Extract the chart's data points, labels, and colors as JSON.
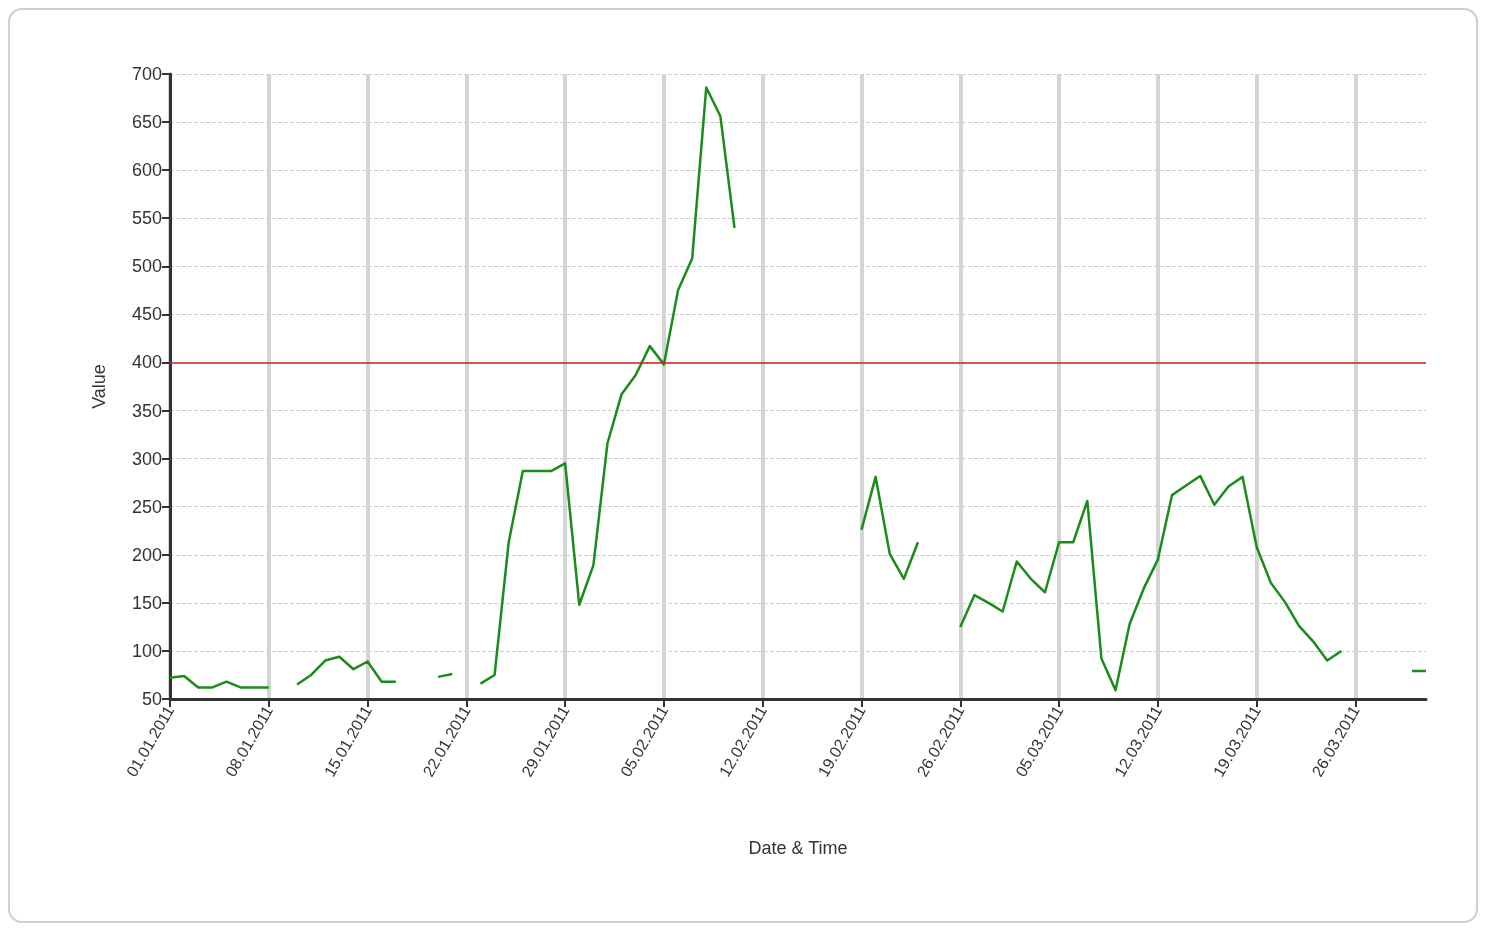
{
  "chart_data": {
    "type": "line",
    "xlabel": "Date & Time",
    "ylabel": "Value",
    "x": [
      "2011-01-01",
      "2011-01-02",
      "2011-01-03",
      "2011-01-04",
      "2011-01-05",
      "2011-01-06",
      "2011-01-07",
      "2011-01-08",
      "2011-01-09",
      "2011-01-10",
      "2011-01-11",
      "2011-01-12",
      "2011-01-13",
      "2011-01-14",
      "2011-01-15",
      "2011-01-16",
      "2011-01-17",
      "2011-01-18",
      "2011-01-19",
      "2011-01-20",
      "2011-01-21",
      "2011-01-22",
      "2011-01-23",
      "2011-01-24",
      "2011-01-25",
      "2011-01-26",
      "2011-01-27",
      "2011-01-28",
      "2011-01-29",
      "2011-01-30",
      "2011-01-31",
      "2011-02-01",
      "2011-02-02",
      "2011-02-03",
      "2011-02-04",
      "2011-02-05",
      "2011-02-06",
      "2011-02-07",
      "2011-02-08",
      "2011-02-09",
      "2011-02-10",
      "2011-02-11",
      "2011-02-12",
      "2011-02-13",
      "2011-02-14",
      "2011-02-15",
      "2011-02-16",
      "2011-02-17",
      "2011-02-18",
      "2011-02-19",
      "2011-02-20",
      "2011-02-21",
      "2011-02-22",
      "2011-02-23",
      "2011-02-24",
      "2011-02-25",
      "2011-02-26",
      "2011-02-27",
      "2011-02-28",
      "2011-03-01",
      "2011-03-02",
      "2011-03-03",
      "2011-03-04",
      "2011-03-05",
      "2011-03-06",
      "2011-03-07",
      "2011-03-08",
      "2011-03-09",
      "2011-03-10",
      "2011-03-11",
      "2011-03-12",
      "2011-03-13",
      "2011-03-14",
      "2011-03-15",
      "2011-03-16",
      "2011-03-17",
      "2011-03-18",
      "2011-03-19",
      "2011-03-20",
      "2011-03-21",
      "2011-03-22",
      "2011-03-23",
      "2011-03-24",
      "2011-03-25",
      "2011-03-26",
      "2011-03-27",
      "2011-03-28",
      "2011-03-29",
      "2011-03-30",
      "2011-03-31"
    ],
    "series": [
      {
        "color": "#1a8c1a",
        "values": [
          72,
          74,
          62,
          62,
          68,
          62,
          62,
          62,
          null,
          65,
          75,
          90,
          94,
          81,
          89,
          68,
          68,
          null,
          null,
          73,
          76,
          null,
          66,
          75,
          213,
          287,
          287,
          287,
          295,
          148,
          189,
          316,
          367,
          387,
          417,
          398,
          475,
          508,
          686,
          656,
          540,
          null,
          null,
          null,
          null,
          null,
          null,
          null,
          null,
          226,
          281,
          201,
          175,
          213,
          null,
          null,
          125,
          158,
          150,
          141,
          193,
          175,
          161,
          213,
          213,
          256,
          92,
          59,
          128,
          165,
          195,
          262,
          272,
          282,
          252,
          271,
          281,
          208,
          171,
          151,
          126,
          110,
          90,
          100,
          null,
          null,
          null,
          null,
          79,
          79
        ]
      }
    ],
    "xlim": [
      "2011-01-01",
      "2011-03-31"
    ],
    "xticks": [
      {
        "value": "2011-01-01",
        "label": "01.01.2011"
      },
      {
        "value": "2011-01-08",
        "label": "08.01.2011"
      },
      {
        "value": "2011-01-15",
        "label": "15.01.2011"
      },
      {
        "value": "2011-01-22",
        "label": "22.01.2011"
      },
      {
        "value": "2011-01-29",
        "label": "29.01.2011"
      },
      {
        "value": "2011-02-05",
        "label": "05.02.2011"
      },
      {
        "value": "2011-02-12",
        "label": "12.02.2011"
      },
      {
        "value": "2011-02-19",
        "label": "19.02.2011"
      },
      {
        "value": "2011-02-26",
        "label": "26.02.2011"
      },
      {
        "value": "2011-03-05",
        "label": "05.03.2011"
      },
      {
        "value": "2011-03-12",
        "label": "12.03.2011"
      },
      {
        "value": "2011-03-19",
        "label": "19.03.2011"
      },
      {
        "value": "2011-03-26",
        "label": "26.03.2011"
      }
    ],
    "ylim": [
      50,
      700
    ],
    "yticks": [
      50,
      100,
      150,
      200,
      250,
      300,
      350,
      400,
      450,
      500,
      550,
      600,
      650,
      700
    ],
    "ref_lines": [
      {
        "axis": "y",
        "value": 400,
        "color": "#cc2222"
      }
    ],
    "grid": true,
    "marker": "none",
    "line_style": "solid"
  }
}
